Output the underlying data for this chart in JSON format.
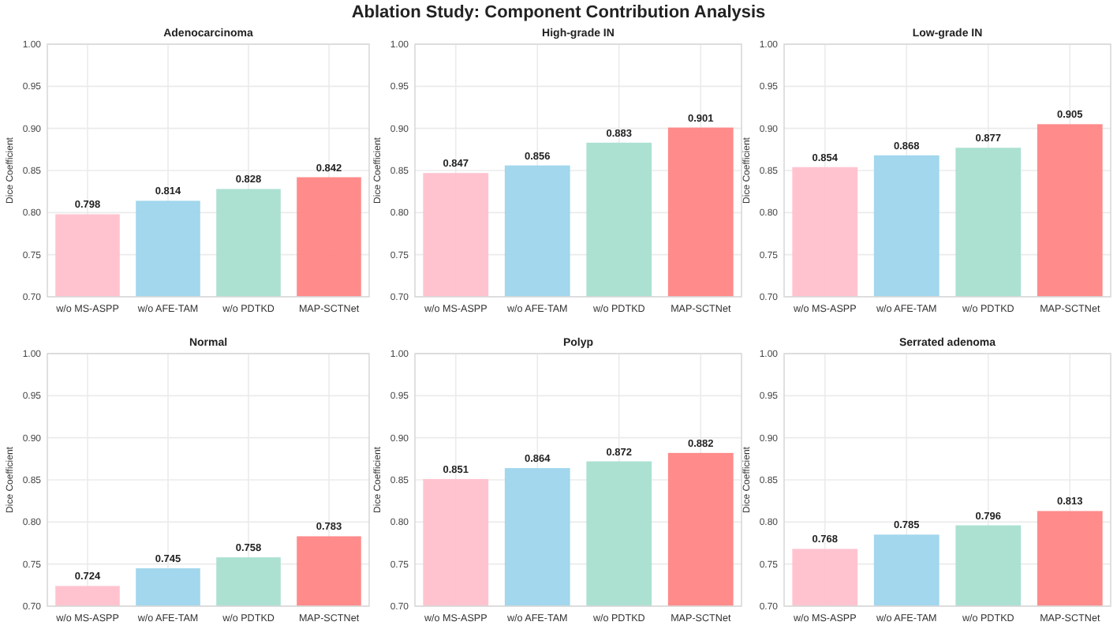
{
  "chart_data": [
    {
      "type": "other",
      "title": "Ablation Study: Component Contribution Analysis"
    },
    {
      "type": "bar",
      "title": "Adenocarcinoma",
      "ylabel": "Dice Coefficient",
      "categories": [
        "w/o MS-ASPP",
        "w/o AFE-TAM",
        "w/o PDTKD",
        "MAP-SCTNet"
      ],
      "values": [
        0.798,
        0.814,
        0.828,
        0.842
      ],
      "colors": [
        "#ffc0cc",
        "#9dd5ec",
        "#a8dfd0",
        "#ff8585"
      ],
      "ylim": [
        0.7,
        1.0
      ],
      "yticks": [
        {
          "value": 0.7,
          "label": "0.70"
        },
        {
          "value": 0.75,
          "label": "0.75"
        },
        {
          "value": 0.8,
          "label": "0.80"
        },
        {
          "value": 0.85,
          "label": "0.85"
        },
        {
          "value": 0.9,
          "label": "0.90"
        },
        {
          "value": 0.95,
          "label": "0.95"
        },
        {
          "value": 1.0,
          "label": "1.00"
        }
      ],
      "grid": true,
      "data_labels": true
    },
    {
      "type": "bar",
      "title": "High-grade IN",
      "ylabel": "Dice Coefficient",
      "categories": [
        "w/o MS-ASPP",
        "w/o AFE-TAM",
        "w/o PDTKD",
        "MAP-SCTNet"
      ],
      "values": [
        0.847,
        0.856,
        0.883,
        0.901
      ],
      "colors": [
        "#ffc0cc",
        "#9dd5ec",
        "#a8dfd0",
        "#ff8585"
      ],
      "ylim": [
        0.7,
        1.0
      ],
      "yticks": [
        {
          "value": 0.7,
          "label": "0.70"
        },
        {
          "value": 0.75,
          "label": "0.75"
        },
        {
          "value": 0.8,
          "label": "0.80"
        },
        {
          "value": 0.85,
          "label": "0.85"
        },
        {
          "value": 0.9,
          "label": "0.90"
        },
        {
          "value": 0.95,
          "label": "0.95"
        },
        {
          "value": 1.0,
          "label": "1.00"
        }
      ],
      "grid": true,
      "data_labels": true
    },
    {
      "type": "bar",
      "title": "Low-grade IN",
      "ylabel": "Dice Coefficient",
      "categories": [
        "w/o MS-ASPP",
        "w/o AFE-TAM",
        "w/o PDTKD",
        "MAP-SCTNet"
      ],
      "values": [
        0.854,
        0.868,
        0.877,
        0.905
      ],
      "colors": [
        "#ffc0cc",
        "#9dd5ec",
        "#a8dfd0",
        "#ff8585"
      ],
      "ylim": [
        0.7,
        1.0
      ],
      "yticks": [
        {
          "value": 0.7,
          "label": "0.70"
        },
        {
          "value": 0.75,
          "label": "0.75"
        },
        {
          "value": 0.8,
          "label": "0.80"
        },
        {
          "value": 0.85,
          "label": "0.85"
        },
        {
          "value": 0.9,
          "label": "0.90"
        },
        {
          "value": 0.95,
          "label": "0.95"
        },
        {
          "value": 1.0,
          "label": "1.00"
        }
      ],
      "grid": true,
      "data_labels": true
    },
    {
      "type": "bar",
      "title": "Normal",
      "ylabel": "Dice Coefficient",
      "categories": [
        "w/o MS-ASPP",
        "w/o AFE-TAM",
        "w/o PDTKD",
        "MAP-SCTNet"
      ],
      "values": [
        0.724,
        0.745,
        0.758,
        0.783
      ],
      "colors": [
        "#ffc0cc",
        "#9dd5ec",
        "#a8dfd0",
        "#ff8585"
      ],
      "ylim": [
        0.7,
        1.0
      ],
      "yticks": [
        {
          "value": 0.7,
          "label": "0.70"
        },
        {
          "value": 0.75,
          "label": "0.75"
        },
        {
          "value": 0.8,
          "label": "0.80"
        },
        {
          "value": 0.85,
          "label": "0.85"
        },
        {
          "value": 0.9,
          "label": "0.90"
        },
        {
          "value": 0.95,
          "label": "0.95"
        },
        {
          "value": 1.0,
          "label": "1.00"
        }
      ],
      "grid": true,
      "data_labels": true
    },
    {
      "type": "bar",
      "title": "Polyp",
      "ylabel": "Dice Coefficient",
      "categories": [
        "w/o MS-ASPP",
        "w/o AFE-TAM",
        "w/o PDTKD",
        "MAP-SCTNet"
      ],
      "values": [
        0.851,
        0.864,
        0.872,
        0.882
      ],
      "colors": [
        "#ffc0cc",
        "#9dd5ec",
        "#a8dfd0",
        "#ff8585"
      ],
      "ylim": [
        0.7,
        1.0
      ],
      "yticks": [
        {
          "value": 0.7,
          "label": "0.70"
        },
        {
          "value": 0.75,
          "label": "0.75"
        },
        {
          "value": 0.8,
          "label": "0.80"
        },
        {
          "value": 0.85,
          "label": "0.85"
        },
        {
          "value": 0.9,
          "label": "0.90"
        },
        {
          "value": 0.95,
          "label": "0.95"
        },
        {
          "value": 1.0,
          "label": "1.00"
        }
      ],
      "grid": true,
      "data_labels": true
    },
    {
      "type": "bar",
      "title": "Serrated adenoma",
      "ylabel": "Dice Coefficient",
      "categories": [
        "w/o MS-ASPP",
        "w/o AFE-TAM",
        "w/o PDTKD",
        "MAP-SCTNet"
      ],
      "values": [
        0.768,
        0.785,
        0.796,
        0.813
      ],
      "colors": [
        "#ffc0cc",
        "#9dd5ec",
        "#a8dfd0",
        "#ff8585"
      ],
      "ylim": [
        0.7,
        1.0
      ],
      "yticks": [
        {
          "value": 0.7,
          "label": "0.70"
        },
        {
          "value": 0.75,
          "label": "0.75"
        },
        {
          "value": 0.8,
          "label": "0.80"
        },
        {
          "value": 0.85,
          "label": "0.85"
        },
        {
          "value": 0.9,
          "label": "0.90"
        },
        {
          "value": 0.95,
          "label": "0.95"
        },
        {
          "value": 1.0,
          "label": "1.00"
        }
      ],
      "grid": true,
      "data_labels": true
    }
  ]
}
